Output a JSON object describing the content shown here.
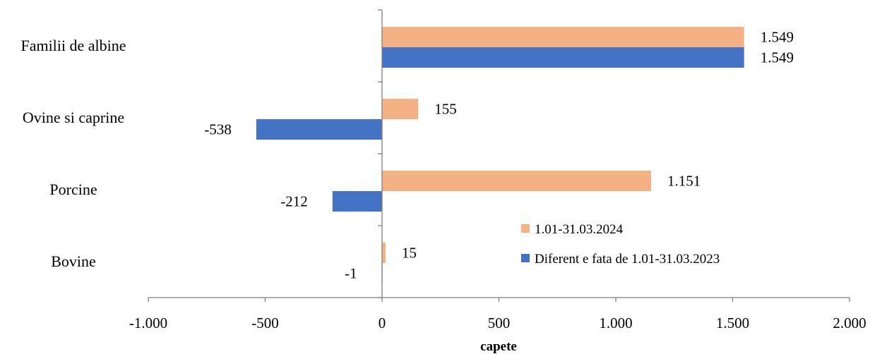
{
  "colors": {
    "series_2024": "#F4B183",
    "series_diff": "#4472C4",
    "axis": "#7F7F7F"
  },
  "chart_data": {
    "type": "bar",
    "orientation": "horizontal",
    "categories": [
      "Familii de albine",
      "Ovine si caprine",
      "Porcine",
      "Bovine"
    ],
    "series": [
      {
        "name": "1.01-31.03.2024",
        "values": [
          1549,
          155,
          1151,
          15
        ],
        "labels": [
          "1.549",
          "155",
          "1.151",
          "15"
        ]
      },
      {
        "name": "Diferent e fata de 1.01-31.03.2023",
        "values": [
          1549,
          -538,
          -212,
          -1
        ],
        "labels": [
          "1.549",
          "-538",
          "-212",
          "-1"
        ]
      }
    ],
    "xlim": [
      -1000,
      2000
    ],
    "x_ticks": [
      -1000,
      -500,
      0,
      500,
      1000,
      1500,
      2000
    ],
    "x_tick_labels": [
      "-1.000",
      "-500",
      "0",
      "500",
      "1.000",
      "1.500",
      "2.000"
    ],
    "xlabel": "capete",
    "ylabel": "",
    "title": "",
    "grid": false,
    "legend_position": "inside-bottom-right"
  }
}
